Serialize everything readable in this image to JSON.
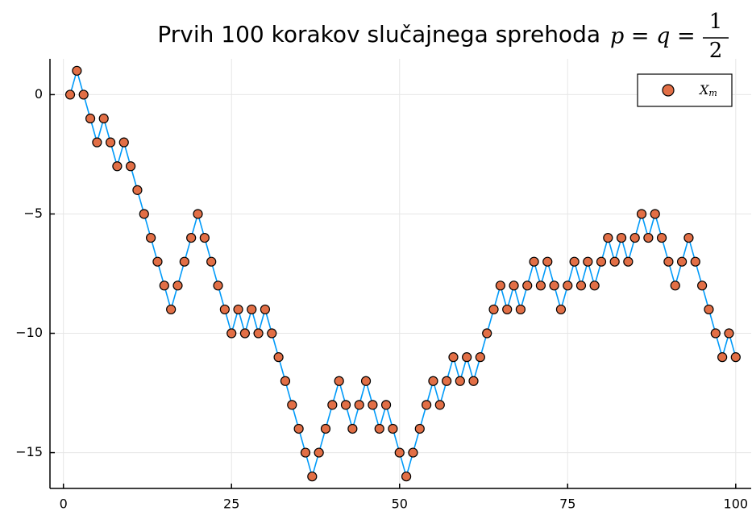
{
  "chart_data": {
    "type": "line",
    "title": "Prvih 100 korakov slučajnega sprehoda",
    "title_math": {
      "lhs": "p = q =",
      "numerator": "1",
      "denominator": "2"
    },
    "x": [
      1,
      2,
      3,
      4,
      5,
      6,
      7,
      8,
      9,
      10,
      11,
      12,
      13,
      14,
      15,
      16,
      17,
      18,
      19,
      20,
      21,
      22,
      23,
      24,
      25,
      26,
      27,
      28,
      29,
      30,
      31,
      32,
      33,
      34,
      35,
      36,
      37,
      38,
      39,
      40,
      41,
      42,
      43,
      44,
      45,
      46,
      47,
      48,
      49,
      50,
      51,
      52,
      53,
      54,
      55,
      56,
      57,
      58,
      59,
      60,
      61,
      62,
      63,
      64,
      65,
      66,
      67,
      68,
      69,
      70,
      71,
      72,
      73,
      74,
      75,
      76,
      77,
      78,
      79,
      80,
      81,
      82,
      83,
      84,
      85,
      86,
      87,
      88,
      89,
      90,
      91,
      92,
      93,
      94,
      95,
      96,
      97,
      98,
      99,
      100
    ],
    "series": [
      {
        "name": "X",
        "name_subscript": "m",
        "color": "#009af9",
        "marker_color": "#e26f46",
        "values": [
          0,
          1,
          0,
          -1,
          -2,
          -1,
          -2,
          -3,
          -2,
          -3,
          -4,
          -5,
          -6,
          -7,
          -8,
          -9,
          -8,
          -7,
          -6,
          -5,
          -6,
          -7,
          -8,
          -9,
          -10,
          -9,
          -10,
          -9,
          -10,
          -9,
          -10,
          -11,
          -12,
          -13,
          -14,
          -15,
          -16,
          -15,
          -14,
          -13,
          -12,
          -13,
          -14,
          -13,
          -12,
          -13,
          -14,
          -13,
          -14,
          -15,
          -16,
          -15,
          -14,
          -13,
          -12,
          -13,
          -12,
          -11,
          -12,
          -11,
          -12,
          -11,
          -10,
          -9,
          -8,
          -9,
          -8,
          -9,
          -8,
          -7,
          -8,
          -7,
          -8,
          -9,
          -8,
          -7,
          -8,
          -7,
          -8,
          -7,
          -6,
          -7,
          -6,
          -7,
          -6,
          -5,
          -6,
          -5,
          -6,
          -7,
          -8,
          -7,
          -6,
          -7,
          -8,
          -9,
          -10,
          -11,
          -10,
          -11
        ]
      }
    ],
    "xlim": [
      -2,
      102.3
    ],
    "ylim": [
      -16.5,
      1.5
    ],
    "xticks": [
      0,
      25,
      50,
      75,
      100
    ],
    "yticks": [
      {
        "value": 0,
        "label": "0"
      },
      {
        "value": -5,
        "label": "−5"
      },
      {
        "value": -10,
        "label": "−10"
      },
      {
        "value": -15,
        "label": "−15"
      }
    ],
    "grid": true,
    "legend": "top-right"
  }
}
